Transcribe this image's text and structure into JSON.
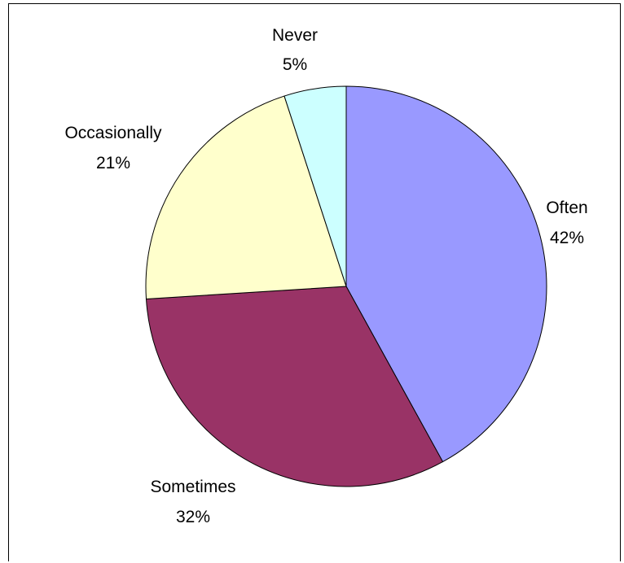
{
  "chart_data": {
    "type": "pie",
    "slices": [
      {
        "label": "Often",
        "value": 42,
        "value_label": "42%",
        "color": "#9999ff"
      },
      {
        "label": "Sometimes",
        "value": 32,
        "value_label": "32%",
        "color": "#993366"
      },
      {
        "label": "Occasionally",
        "value": 21,
        "value_label": "21%",
        "color": "#ffffcc"
      },
      {
        "label": "Never",
        "value": 5,
        "value_label": "5%",
        "color": "#ccffff"
      }
    ],
    "start_angle": "12 o'clock",
    "direction": "clockwise",
    "legend": "none"
  }
}
